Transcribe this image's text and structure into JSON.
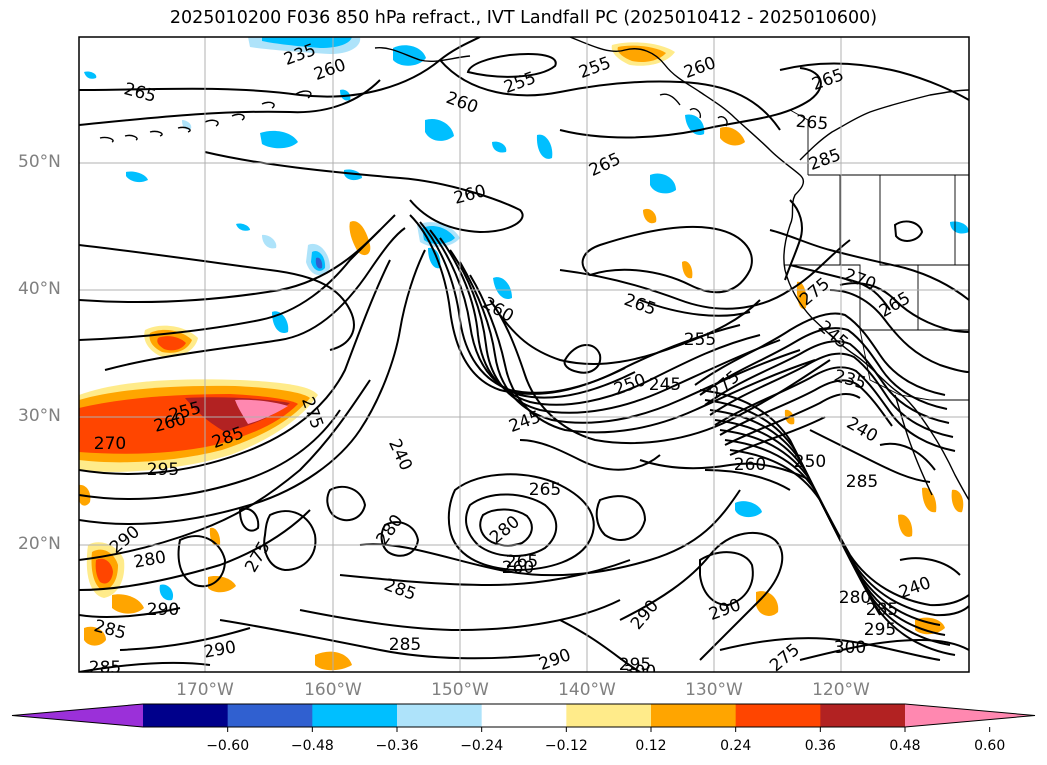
{
  "title": "2025010200 F036 850 hPa refract., IVT Landfall PC (2025010412 - 2025010600)",
  "lat_labels": [
    "50°N",
    "40°N",
    "30°N",
    "20°N"
  ],
  "lon_labels": [
    "170°W",
    "160°W",
    "150°W",
    "140°W",
    "130°W",
    "120°W"
  ],
  "colorbar": {
    "ticks": [
      "−0.60",
      "−0.48",
      "−0.36",
      "−0.24",
      "−0.12",
      "0.12",
      "0.24",
      "0.36",
      "0.48",
      "0.60"
    ],
    "colors": [
      "#9b30d9",
      "#00008b",
      "#3060d0",
      "#00bfff",
      "#aee3fa",
      "#ffffff",
      "#ffeb8a",
      "#ffa500",
      "#ff4500",
      "#b22222",
      "#ff88b0"
    ]
  },
  "contour_labels": [
    "235",
    "260",
    "255",
    "255",
    "260",
    "260",
    "265",
    "265",
    "260",
    "265",
    "265",
    "285",
    "265",
    "255",
    "260",
    "250",
    "245",
    "275",
    "275",
    "270",
    "265",
    "245",
    "235",
    "240",
    "250",
    "260",
    "255",
    "260",
    "270",
    "295",
    "285",
    "275",
    "240",
    "245",
    "265",
    "280",
    "265",
    "260",
    "285",
    "280",
    "290",
    "275",
    "290",
    "285",
    "285",
    "290",
    "285",
    "280",
    "290",
    "295",
    "290",
    "300",
    "290",
    "275",
    "300",
    "295",
    "280",
    "285",
    "240",
    "285"
  ],
  "map_features": {
    "grid": true,
    "coastlines": true,
    "borders": true,
    "filled_field": "refractivity PC",
    "contour_field": "refractivity"
  }
}
